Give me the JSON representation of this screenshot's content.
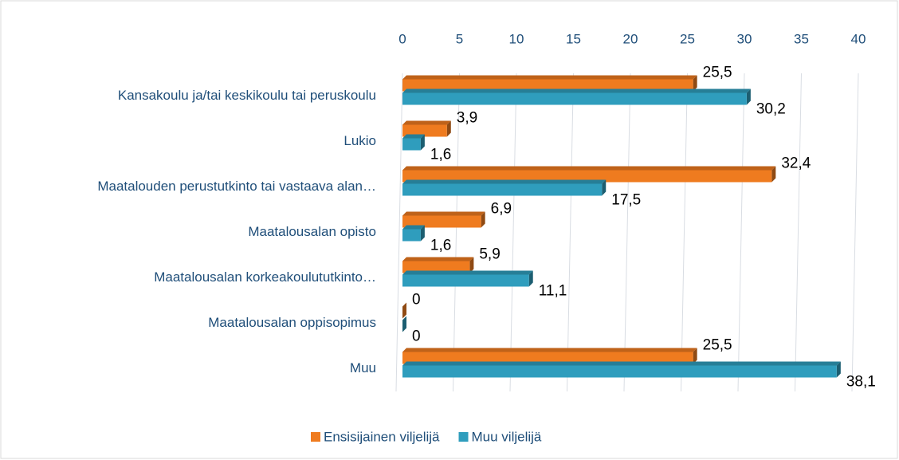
{
  "chart_data": {
    "type": "bar",
    "orientation": "horizontal",
    "categories": [
      "Kansakoulu ja/tai keskikoulu tai peruskoulu",
      "Lukio",
      "Maatalouden perustutkinto tai vastaava alan…",
      "Maatalousalan opisto",
      "Maatalousalan korkeakoulututkinto…",
      "Maatalousalan oppisopimus",
      "Muu"
    ],
    "series": [
      {
        "name": "Ensisijainen viljelijä",
        "color": "#ef7b1f",
        "values": [
          25.5,
          3.9,
          32.4,
          6.9,
          5.9,
          0,
          25.5
        ],
        "value_labels": [
          "25,5",
          "3,9",
          "32,4",
          "6,9",
          "5,9",
          "0",
          "25,5"
        ]
      },
      {
        "name": "Muu viljelijä",
        "color": "#2f9dbd",
        "values": [
          30.2,
          1.6,
          17.5,
          1.6,
          11.1,
          0,
          38.1
        ],
        "value_labels": [
          "30,2",
          "1,6",
          "17,5",
          "1,6",
          "11,1",
          "0",
          "38,1"
        ]
      }
    ],
    "xlim": [
      0,
      40
    ],
    "xticks": [
      0,
      5,
      10,
      15,
      20,
      25,
      30,
      35,
      40
    ],
    "grid": true,
    "legend": "bottom"
  }
}
